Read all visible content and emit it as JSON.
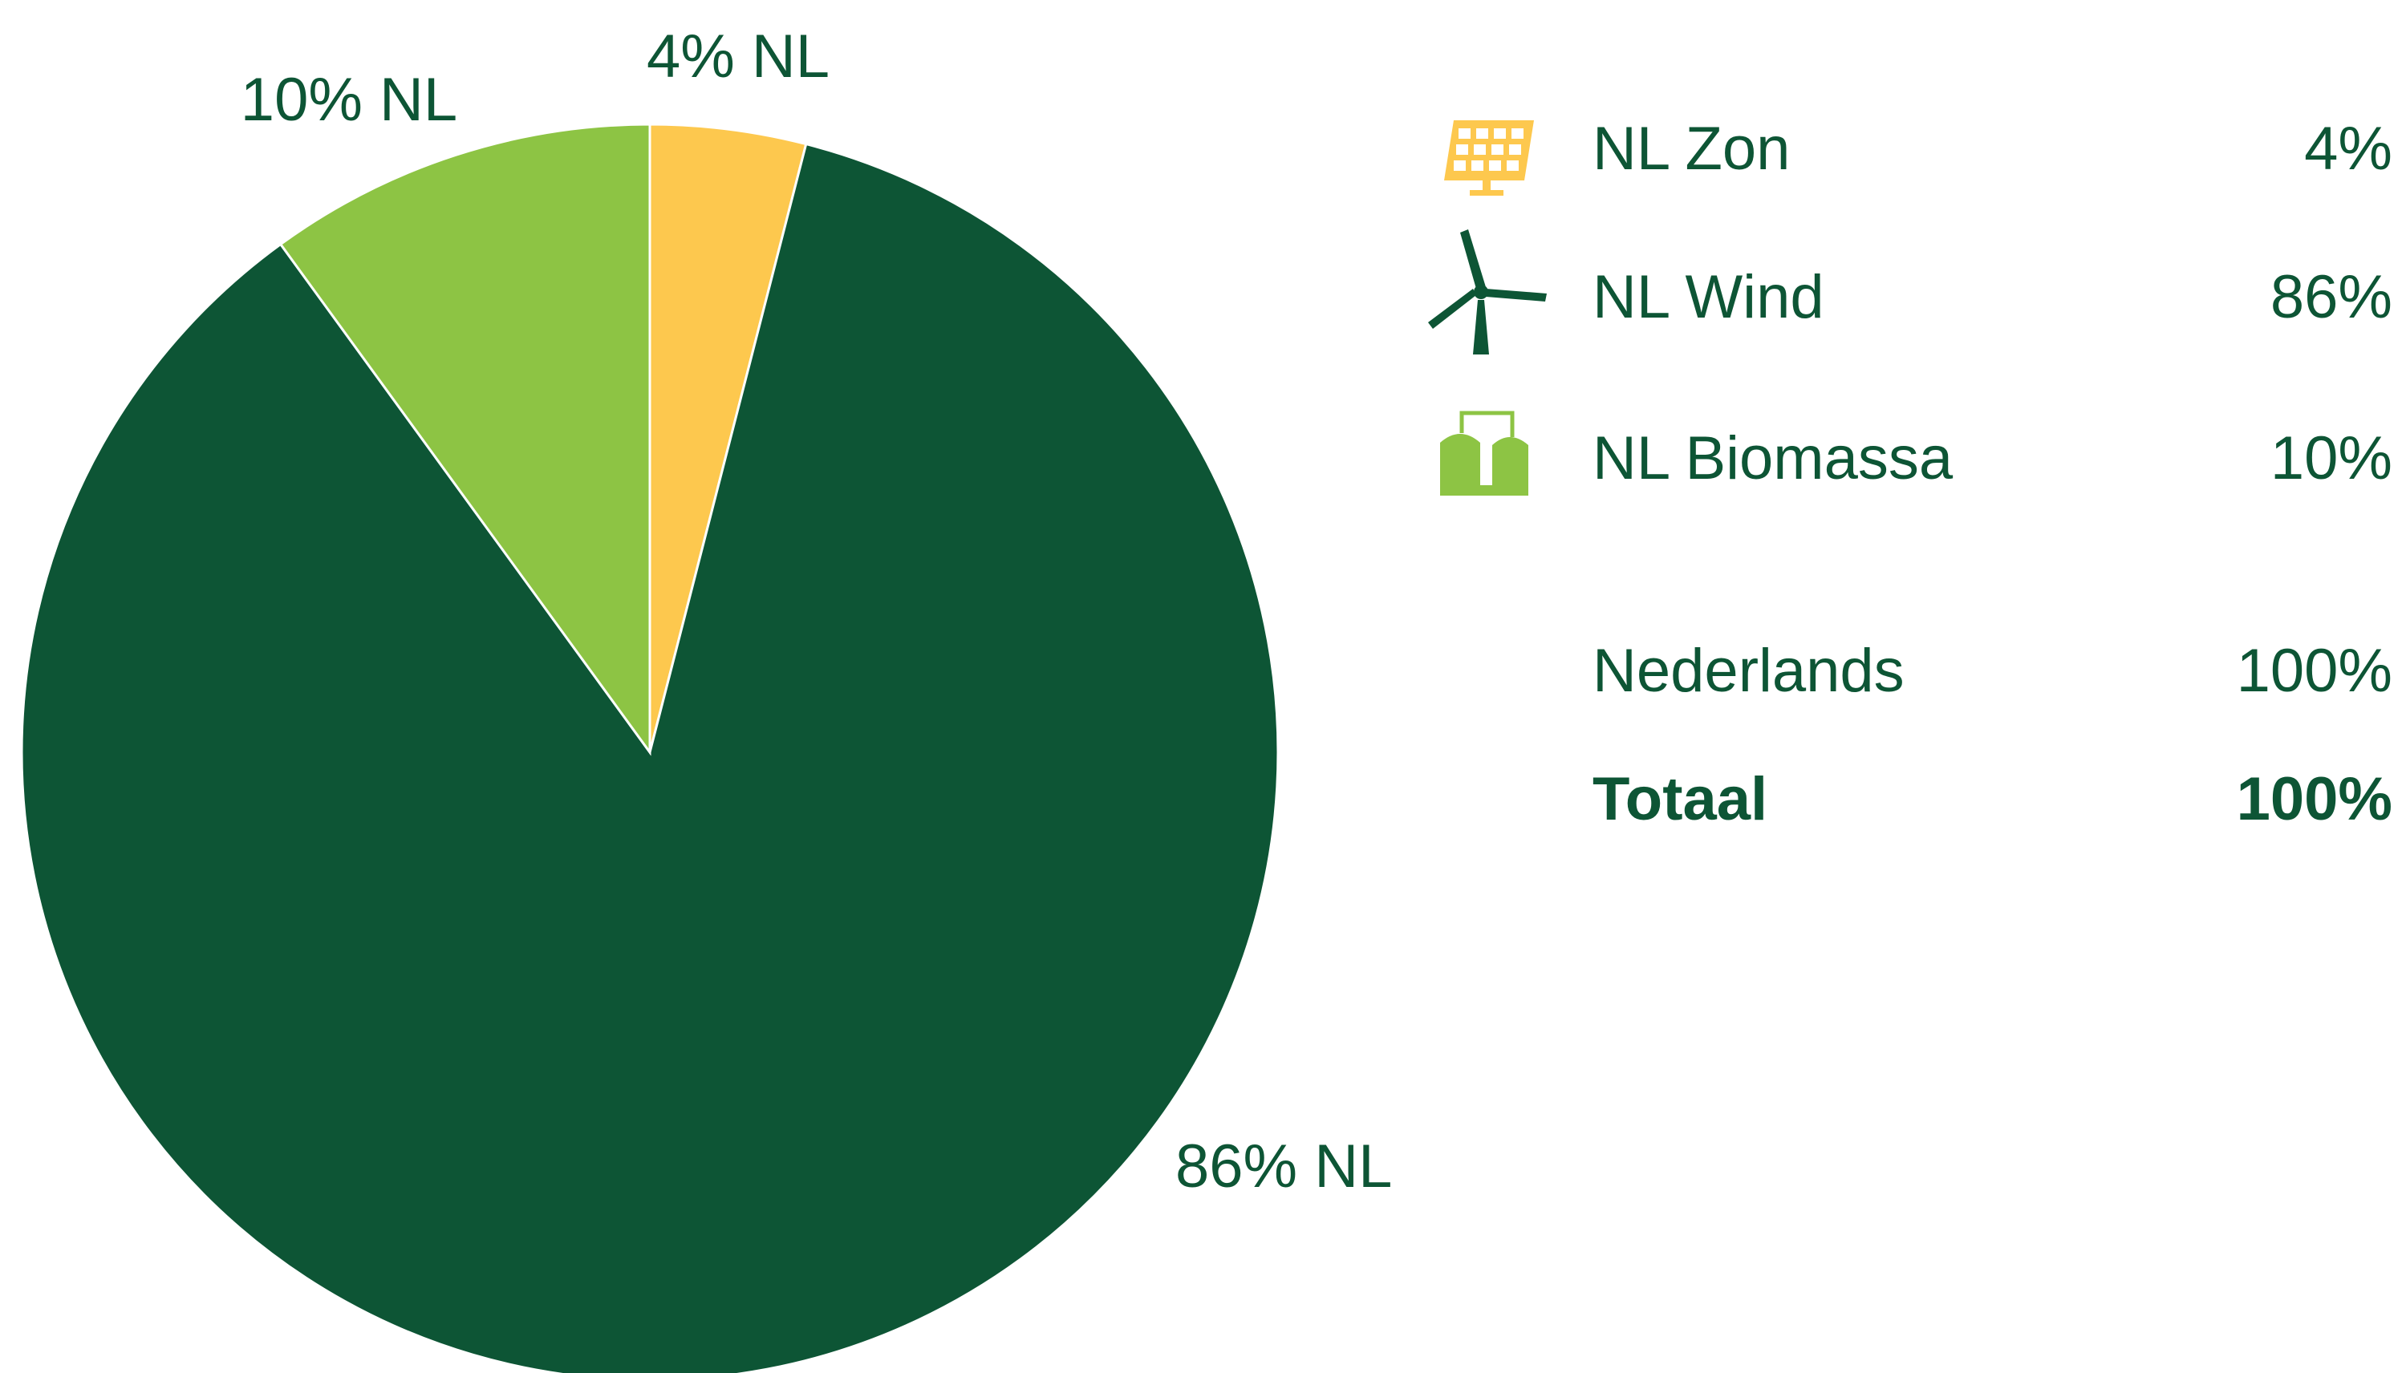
{
  "chart_data": {
    "type": "pie",
    "categories": [
      "NL Zon",
      "NL Wind",
      "NL Biomassa"
    ],
    "values": [
      4,
      86,
      10
    ],
    "value_labels": [
      "4% NL",
      "86% NL",
      "10% NL"
    ],
    "colors": [
      "#fdc84e",
      "#0d5535",
      "#8dc444"
    ],
    "legend_labels": [
      "4%",
      "86%",
      "10%"
    ],
    "summary": [
      {
        "name": "Nederlands",
        "value": "100%"
      },
      {
        "name": "Totaal",
        "value": "100%"
      }
    ]
  }
}
